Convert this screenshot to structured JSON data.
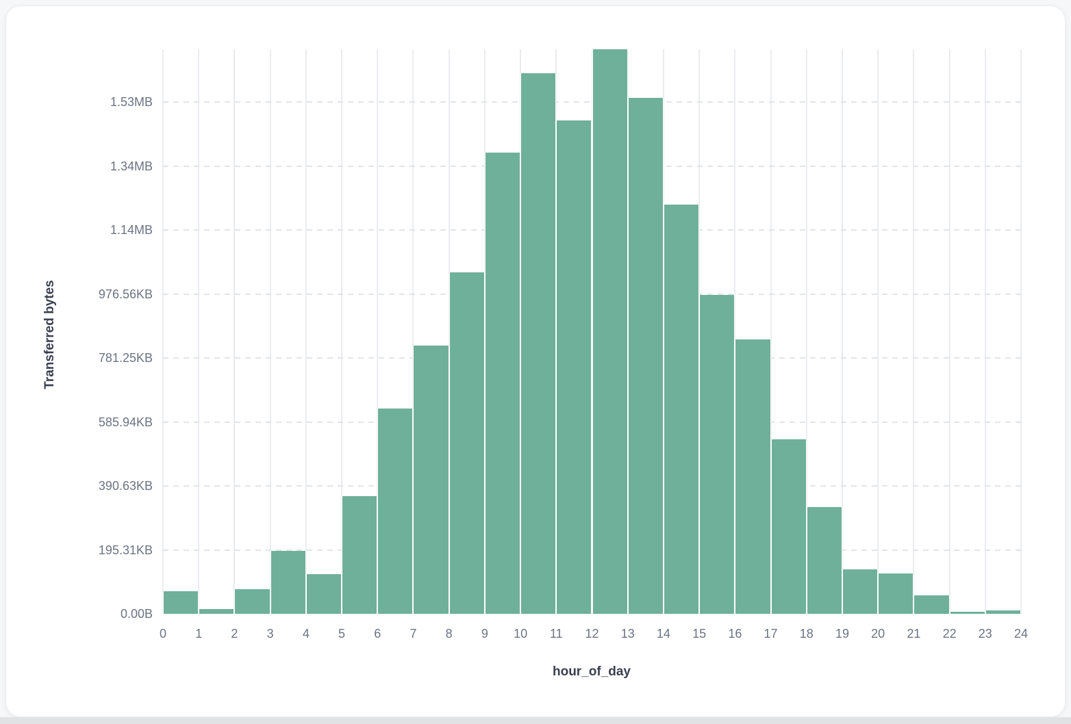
{
  "page": {
    "background": "#f6f7f9",
    "bottom_strip_color": "#e0e2e4"
  },
  "card": {
    "background": "#ffffff",
    "border_color": "#edeef1"
  },
  "chart_data": {
    "type": "bar",
    "title": "",
    "xlabel": "hour_of_day",
    "ylabel": "Transferred bytes",
    "bar_color": "#6fb09a",
    "grid": {
      "vertical": "solid",
      "horizontal": "dashed",
      "vertical_color": "#eaecef",
      "dashed_color": "#e2e4e8"
    },
    "xlim": [
      0,
      24
    ],
    "ylim": [
      0,
      1765000
    ],
    "categories": [
      0,
      1,
      2,
      3,
      4,
      5,
      6,
      7,
      8,
      9,
      10,
      11,
      12,
      13,
      14,
      15,
      16,
      17,
      18,
      19,
      20,
      21,
      22,
      23
    ],
    "values": [
      71000,
      15000,
      78000,
      196000,
      125000,
      368000,
      642000,
      839000,
      1067000,
      1443000,
      1690000,
      1543000,
      1765000,
      1613000,
      1280000,
      997000,
      857000,
      546000,
      333000,
      140000,
      127000,
      57000,
      6000,
      11000
    ],
    "values_unit": "bytes",
    "x_tick_labels": [
      "0",
      "1",
      "2",
      "3",
      "4",
      "5",
      "6",
      "7",
      "8",
      "9",
      "10",
      "11",
      "12",
      "13",
      "14",
      "15",
      "16",
      "17",
      "18",
      "19",
      "20",
      "21",
      "22",
      "23",
      "24"
    ],
    "y_ticks": [
      {
        "value": 0,
        "label": "0.00B"
      },
      {
        "value": 200000,
        "label": "195.31KB"
      },
      {
        "value": 400000,
        "label": "390.63KB"
      },
      {
        "value": 600000,
        "label": "585.94KB"
      },
      {
        "value": 800000,
        "label": "781.25KB"
      },
      {
        "value": 1000000,
        "label": "976.56KB"
      },
      {
        "value": 1200000,
        "label": "1.14MB"
      },
      {
        "value": 1400000,
        "label": "1.34MB"
      },
      {
        "value": 1600000,
        "label": "1.53MB"
      }
    ],
    "legend": null
  },
  "text_colors": {
    "tick_label": "#6b7383",
    "axis_title": "#3a4050"
  }
}
